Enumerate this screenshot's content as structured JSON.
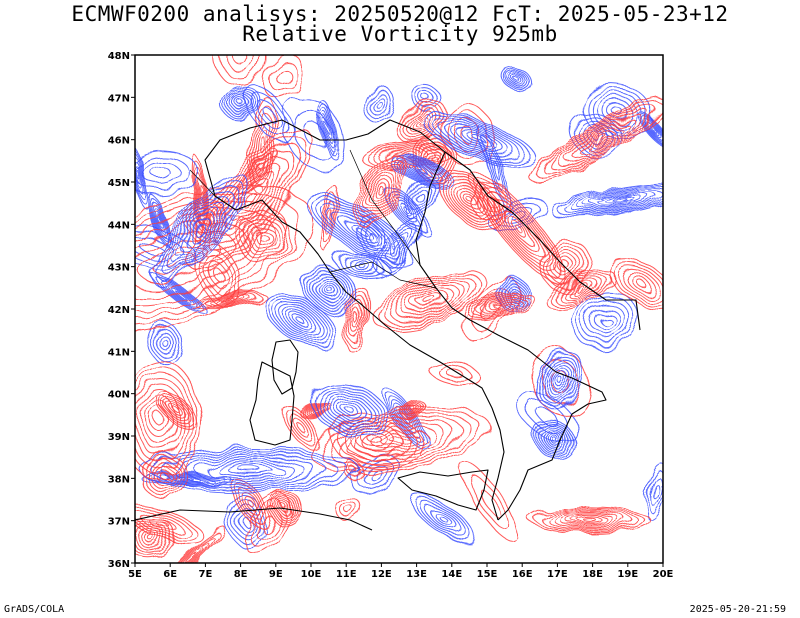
{
  "header": {
    "title_line1": "ECMWF0200 analisys: 20250520@12 FcT: 2025-05-23+12",
    "title_line2": "Relative Vorticity 925mb"
  },
  "axes": {
    "lat_labels": [
      "48N",
      "47N",
      "46N",
      "45N",
      "44N",
      "43N",
      "42N",
      "41N",
      "40N",
      "39N",
      "38N",
      "37N",
      "36N"
    ],
    "lon_labels": [
      "5E",
      "6E",
      "7E",
      "8E",
      "9E",
      "10E",
      "11E",
      "12E",
      "13E",
      "14E",
      "15E",
      "16E",
      "17E",
      "18E",
      "19E",
      "20E"
    ]
  },
  "colors": {
    "positive_contour": "#ff3b3b",
    "negative_contour": "#3b4fff",
    "coastline": "#000000",
    "frame": "#000000"
  },
  "footer": {
    "credit": "GrADS/COLA",
    "timestamp": "2025-05-20-21:59"
  }
}
